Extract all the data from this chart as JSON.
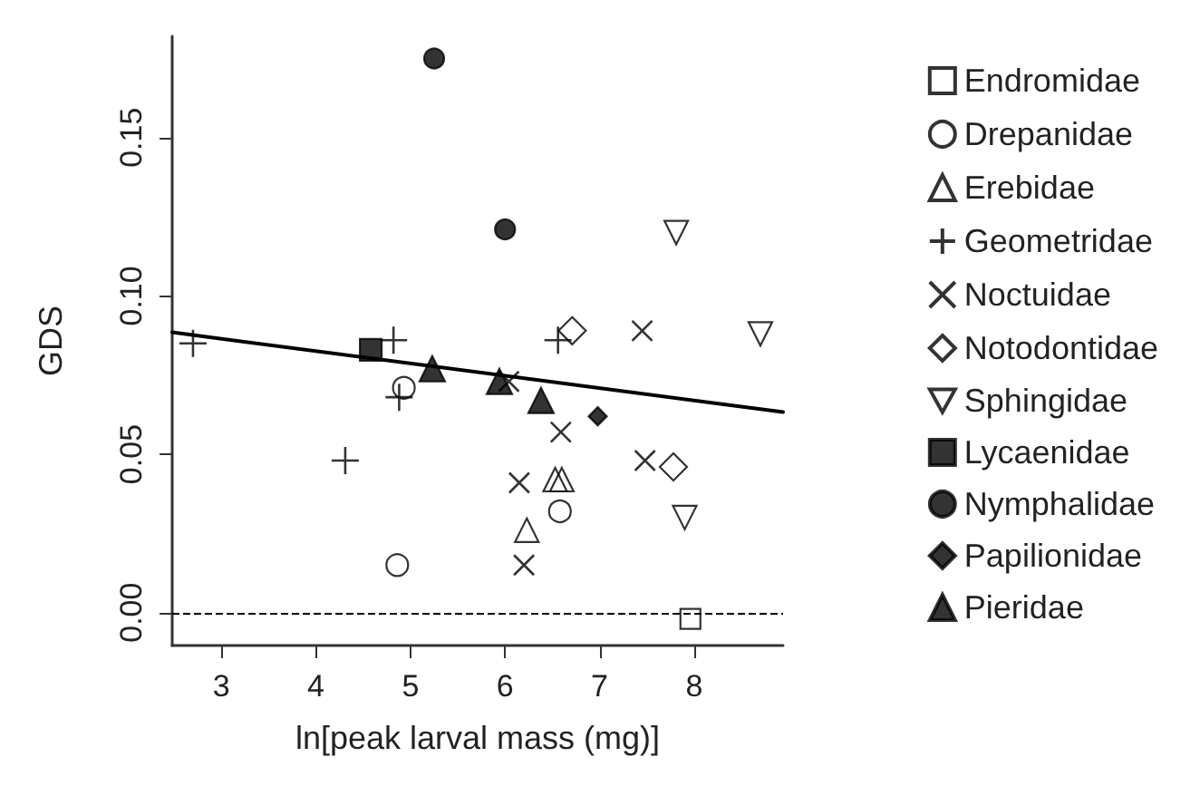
{
  "chart_data": {
    "type": "scatter",
    "xlabel": "ln[peak larval mass (mg)]",
    "ylabel": "GDS",
    "xlim": [
      2.48,
      8.94
    ],
    "ylim": [
      -0.0104,
      0.182
    ],
    "xticks": [
      3,
      4,
      5,
      6,
      7,
      8
    ],
    "yticks": [
      {
        "value": 0,
        "label": "0.00"
      },
      {
        "value": 0.05,
        "label": "0.05"
      },
      {
        "value": 0.1,
        "label": "0.10"
      },
      {
        "value": 0.15,
        "label": "0.15"
      }
    ],
    "grid": false,
    "legend": "right",
    "ref_lines": [
      {
        "axis": "y",
        "value": 0,
        "line_style": "dashed",
        "color": "#000000"
      }
    ],
    "series": [
      {
        "name": "Endromidae",
        "color": "#000000",
        "marker": "square-open",
        "x": [
          7.96
        ],
        "values": [
          -0.002
        ]
      },
      {
        "name": "Drepanidae",
        "color": "#000000",
        "marker": "circle-open",
        "x": [
          4.93,
          4.86,
          6.58
        ],
        "values": [
          0.071,
          0.015,
          0.032
        ]
      },
      {
        "name": "Erebidae",
        "color": "#000000",
        "marker": "triangle-open",
        "x": [
          6.23,
          6.53,
          6.6
        ],
        "values": [
          0.026,
          0.042,
          0.042
        ]
      },
      {
        "name": "Geometridae",
        "color": "#000000",
        "marker": "cross",
        "x": [
          2.7,
          4.82,
          4.88,
          4.31,
          6.56
        ],
        "values": [
          0.085,
          0.086,
          0.068,
          0.048,
          0.086
        ]
      },
      {
        "name": "Noctuidae",
        "color": "#000000",
        "marker": "x",
        "x": [
          6.04,
          6.59,
          6.15,
          6.2,
          7.48,
          7.45
        ],
        "values": [
          0.073,
          0.057,
          0.041,
          0.015,
          0.048,
          0.089
        ]
      },
      {
        "name": "Notodontidae",
        "color": "#000000",
        "marker": "diamond-open",
        "x": [
          6.71,
          7.78
        ],
        "values": [
          0.089,
          0.046
        ]
      },
      {
        "name": "Sphingidae",
        "color": "#000000",
        "marker": "triangle-down-open",
        "x": [
          7.81,
          8.7,
          7.9
        ],
        "values": [
          0.12,
          0.088,
          0.03
        ]
      },
      {
        "name": "Lycaenidae",
        "color": "#000000",
        "marker": "square",
        "x": [
          4.58
        ],
        "values": [
          0.083
        ]
      },
      {
        "name": "Nymphalidae",
        "color": "#000000",
        "marker": "circle",
        "x": [
          5.25,
          6.0
        ],
        "values": [
          0.175,
          0.121
        ]
      },
      {
        "name": "Papilionidae",
        "color": "#000000",
        "marker": "diamond",
        "x": [
          6.98
        ],
        "values": [
          0.062
        ]
      },
      {
        "name": "Pieridae",
        "color": "#000000",
        "marker": "triangle",
        "x": [
          5.23,
          5.94,
          6.38
        ],
        "values": [
          0.077,
          0.073,
          0.067
        ]
      },
      {
        "type": "line",
        "color": "#000000",
        "marker": "none",
        "line_style": "solid",
        "x": [
          2.48,
          8.94
        ],
        "values": [
          0.0885,
          0.0633
        ]
      }
    ]
  }
}
